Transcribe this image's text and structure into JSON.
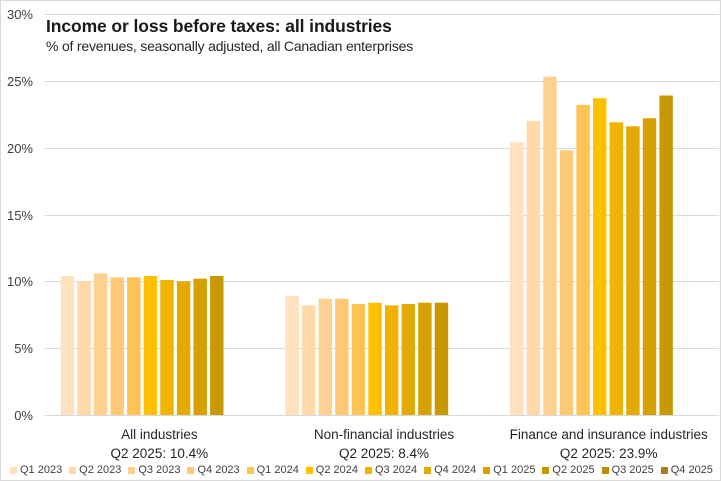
{
  "chart_data": {
    "type": "bar",
    "title": "Income or loss before taxes: all industries",
    "subtitle": "% of revenues, seasonally adjusted, all Canadian enterprises",
    "xlabel": "",
    "ylabel": "",
    "ylim": [
      0,
      30
    ],
    "yticks": [
      0,
      5,
      10,
      15,
      20,
      25,
      30
    ],
    "ytick_labels": [
      "0%",
      "5%",
      "10%",
      "15%",
      "20%",
      "25%",
      "30%"
    ],
    "grid": true,
    "legend_position": "bottom",
    "categories": [
      {
        "line1": "All industries",
        "line2": "Q2 2025:  10.4%"
      },
      {
        "line1": "Non-financial industries",
        "line2": "Q2 2025:  8.4%"
      },
      {
        "line1": "Finance and insurance industries",
        "line2": "Q2 2025:  23.9%"
      }
    ],
    "series": [
      {
        "name": "Q1 2023",
        "color": "#FFE0BF",
        "values": [
          10.4,
          8.9,
          20.4
        ]
      },
      {
        "name": "Q2 2023",
        "color": "#FFD9A7",
        "values": [
          10.0,
          8.2,
          22.0
        ]
      },
      {
        "name": "Q3 2023",
        "color": "#FFD191",
        "values": [
          10.6,
          8.7,
          25.3
        ]
      },
      {
        "name": "Q4 2023",
        "color": "#FFC978",
        "values": [
          10.3,
          8.7,
          19.8
        ]
      },
      {
        "name": "Q1 2024",
        "color": "#FFC254",
        "values": [
          10.3,
          8.3,
          23.2
        ]
      },
      {
        "name": "Q2 2024",
        "color": "#FFC000",
        "values": [
          10.4,
          8.4,
          23.7
        ]
      },
      {
        "name": "Q3 2024",
        "color": "#EFB300",
        "values": [
          10.1,
          8.2,
          21.9
        ]
      },
      {
        "name": "Q4 2024",
        "color": "#E3A900",
        "values": [
          10.0,
          8.3,
          21.6
        ]
      },
      {
        "name": "Q1 2025",
        "color": "#D6A000",
        "values": [
          10.2,
          8.4,
          22.2
        ]
      },
      {
        "name": "Q2 2025",
        "color": "#C89800",
        "values": [
          10.4,
          8.4,
          23.9
        ]
      },
      {
        "name": "Q3 2025",
        "color": "#B8900E",
        "values": [
          null,
          null,
          null
        ]
      },
      {
        "name": "Q4 2025",
        "color": "#A8811A",
        "values": [
          null,
          null,
          null
        ]
      }
    ]
  },
  "colors": {
    "gridline": "#d9d9d9",
    "axis_line": "#d9d9d9",
    "frame": "#d9d9d9"
  }
}
